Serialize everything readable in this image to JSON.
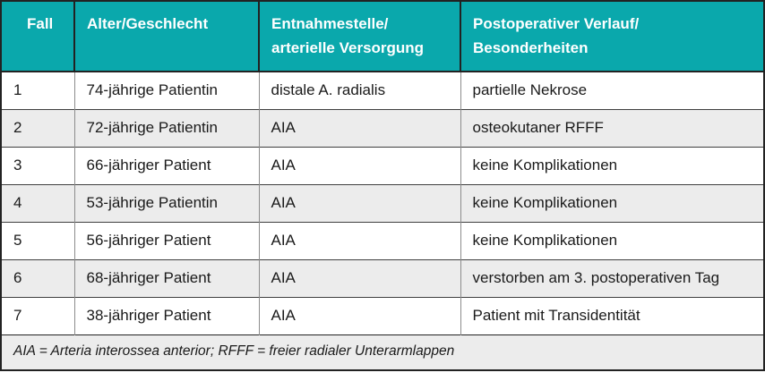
{
  "colors": {
    "header_bg": "#0aa8ac",
    "header_text": "#ffffff",
    "row_alt_bg": "#ececec",
    "footnote_bg": "#ececec",
    "body_text": "#1a1a1a"
  },
  "table": {
    "headers": [
      {
        "line1": "Fall",
        "line2": ""
      },
      {
        "line1": "Alter/Geschlecht",
        "line2": ""
      },
      {
        "line1": "Entnahmestelle/",
        "line2": "arterielle Versorgung"
      },
      {
        "line1": "Postoperativer Verlauf/",
        "line2": "Besonderheiten"
      }
    ],
    "rows": [
      {
        "fall": "1",
        "alter_geschlecht": "74-jährige Patientin",
        "entnahmestelle": "distale A. radialis",
        "verlauf": "partielle Nekrose"
      },
      {
        "fall": "2",
        "alter_geschlecht": "72-jährige Patientin",
        "entnahmestelle": "AIA",
        "verlauf": "osteokutaner RFFF"
      },
      {
        "fall": "3",
        "alter_geschlecht": "66-jähriger Patient",
        "entnahmestelle": "AIA",
        "verlauf": "keine Komplikationen"
      },
      {
        "fall": "4",
        "alter_geschlecht": "53-jährige Patientin",
        "entnahmestelle": "AIA",
        "verlauf": "keine Komplikationen"
      },
      {
        "fall": "5",
        "alter_geschlecht": "56-jähriger Patient",
        "entnahmestelle": "AIA",
        "verlauf": "keine Komplikationen"
      },
      {
        "fall": "6",
        "alter_geschlecht": "68-jähriger Patient",
        "entnahmestelle": "AIA",
        "verlauf": "verstorben am 3. postoperativen Tag"
      },
      {
        "fall": "7",
        "alter_geschlecht": "38-jähriger Patient",
        "entnahmestelle": "AIA",
        "verlauf": "Patient mit Transidentität"
      }
    ],
    "footnote": "AIA = Arteria interossea anterior; RFFF = freier radialer Unterarmlappen"
  }
}
